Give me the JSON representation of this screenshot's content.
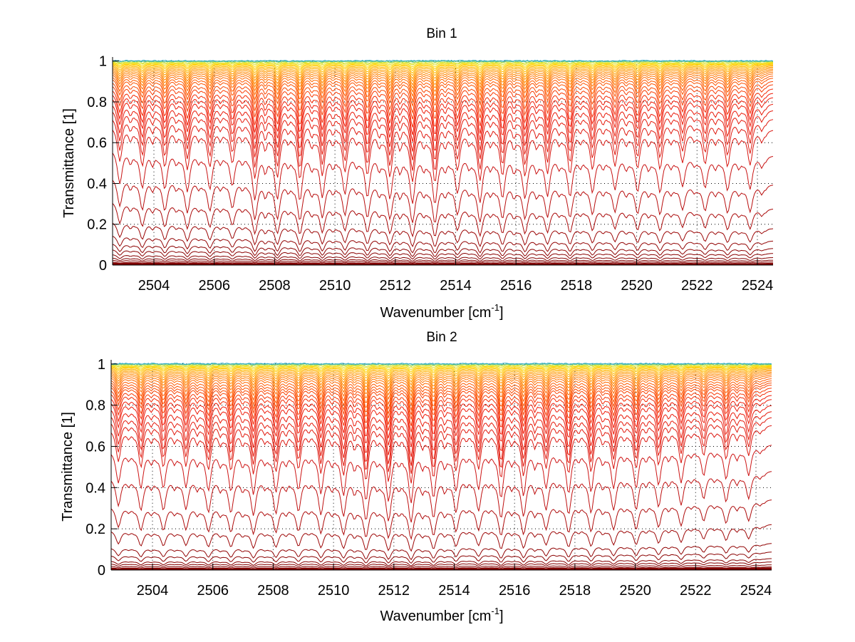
{
  "chart_data": [
    {
      "type": "line",
      "title": "Bin 1",
      "xlabel": "Wavenumber [cm",
      "xlabel_superscript": "-1",
      "xlabel_suffix": "]",
      "ylabel": "Transmittance [1]",
      "xlim": [
        2502.63,
        2524.52
      ],
      "ylim": [
        0,
        1.02
      ],
      "x_ticks": [
        2504,
        2506,
        2508,
        2510,
        2512,
        2514,
        2516,
        2518,
        2520,
        2522,
        2524
      ],
      "y_ticks": [
        0,
        0.2,
        0.4,
        0.6,
        0.8,
        1
      ],
      "y_tick_labels": [
        "0",
        "0.2",
        "0.4",
        "0.6",
        "0.8",
        "1"
      ],
      "x_tick_labels": [
        "2504",
        "2506",
        "2508",
        "2510",
        "2512",
        "2514",
        "2516",
        "2518",
        "2520",
        "2522",
        "2524"
      ],
      "grid": "dotted",
      "line_centers_start": 2502.87,
      "line_spacing": 0.746,
      "line_count": 29,
      "continuum_tilt": 0.06,
      "continuum_transmittance": [
        1.0,
        0.999,
        0.998,
        0.996,
        0.994,
        0.991,
        0.988,
        0.985,
        0.981,
        0.977,
        0.972,
        0.967,
        0.961,
        0.955,
        0.948,
        0.94,
        0.93,
        0.92,
        0.905,
        0.89,
        0.87,
        0.85,
        0.83,
        0.8,
        0.77,
        0.73,
        0.68,
        0.56,
        0.42,
        0.3,
        0.2,
        0.135,
        0.095,
        0.068,
        0.045,
        0.03,
        0.02,
        0.012,
        0.006,
        0.002,
        0.0005
      ],
      "strength_seed": 1
    },
    {
      "type": "line",
      "title": "Bin 2",
      "xlabel": "Wavenumber [cm",
      "xlabel_superscript": "-1",
      "xlabel_suffix": "]",
      "ylabel": "Transmittance [1]",
      "xlim": [
        2502.63,
        2524.52
      ],
      "ylim": [
        0,
        1.02
      ],
      "x_ticks": [
        2504,
        2506,
        2508,
        2510,
        2512,
        2514,
        2516,
        2518,
        2520,
        2522,
        2524
      ],
      "y_ticks": [
        0,
        0.2,
        0.4,
        0.6,
        0.8,
        1
      ],
      "y_tick_labels": [
        "0",
        "0.2",
        "0.4",
        "0.6",
        "0.8",
        "1"
      ],
      "x_tick_labels": [
        "2504",
        "2506",
        "2508",
        "2510",
        "2512",
        "2514",
        "2516",
        "2518",
        "2520",
        "2522",
        "2524"
      ],
      "grid": "dotted",
      "line_centers_start": 2502.87,
      "line_spacing": 0.746,
      "line_count": 29,
      "continuum_tilt": -0.04,
      "continuum_transmittance": [
        1.0,
        0.999,
        0.998,
        0.996,
        0.994,
        0.991,
        0.988,
        0.985,
        0.981,
        0.977,
        0.972,
        0.967,
        0.961,
        0.955,
        0.948,
        0.94,
        0.93,
        0.92,
        0.91,
        0.9,
        0.885,
        0.87,
        0.85,
        0.83,
        0.8,
        0.77,
        0.74,
        0.7,
        0.6,
        0.47,
        0.33,
        0.21,
        0.12,
        0.08,
        0.05,
        0.035,
        0.022,
        0.013,
        0.007,
        0.003,
        0.001
      ],
      "strength_seed": 2
    }
  ]
}
